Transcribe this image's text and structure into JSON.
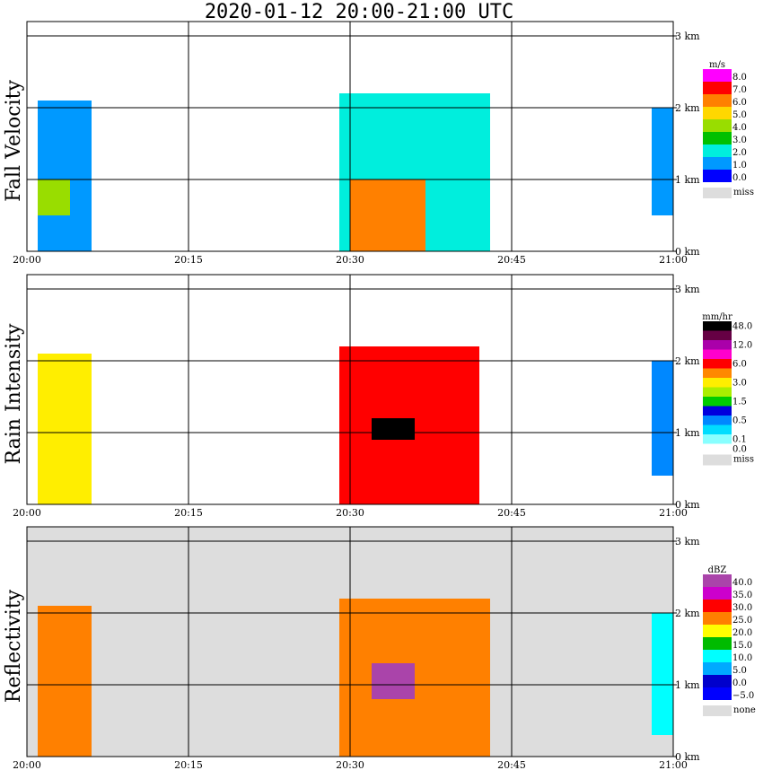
{
  "title": "2020-01-12   20:00-21:00 UTC",
  "x_ticks": [
    "20:00",
    "20:15",
    "20:30",
    "20:45",
    "21:00"
  ],
  "y_ticks": [
    "0 km",
    "1 km",
    "2 km",
    "3 km"
  ],
  "panels": [
    {
      "ylabel": "Fall Velocity",
      "unit": "m/s",
      "background": "#ffffff",
      "legend": [
        {
          "label": "8.0",
          "color": "#ff00ff"
        },
        {
          "label": "7.0",
          "color": "#ff0000"
        },
        {
          "label": "6.0",
          "color": "#ff8000"
        },
        {
          "label": "5.0",
          "color": "#ffd700"
        },
        {
          "label": "4.0",
          "color": "#99dd00"
        },
        {
          "label": "3.0",
          "color": "#00c000"
        },
        {
          "label": "2.0",
          "color": "#00eedd"
        },
        {
          "label": "1.0",
          "color": "#0099ff"
        },
        {
          "label": "0.0",
          "color": "#0000ff"
        }
      ],
      "missing_label": "miss"
    },
    {
      "ylabel": "Rain Intensity",
      "unit": "mm/hr",
      "background": "#ffffff",
      "legend": [
        {
          "label": "48.0",
          "color": "#000000"
        },
        {
          "label": "",
          "color": "#660044"
        },
        {
          "label": "12.0",
          "color": "#aa00aa"
        },
        {
          "label": "",
          "color": "#ff00cc"
        },
        {
          "label": "6.0",
          "color": "#ff0000"
        },
        {
          "label": "",
          "color": "#ff8800"
        },
        {
          "label": "3.0",
          "color": "#ffee00"
        },
        {
          "label": "",
          "color": "#aaee00"
        },
        {
          "label": "1.5",
          "color": "#00cc00"
        },
        {
          "label": "",
          "color": "#0000dd"
        },
        {
          "label": "0.5",
          "color": "#0088ff"
        },
        {
          "label": "",
          "color": "#00ddff"
        },
        {
          "label": "0.1",
          "color": "#88ffff"
        }
      ],
      "min_label": "0.0",
      "missing_label": "miss"
    },
    {
      "ylabel": "Reflectivity",
      "unit": "dBZ",
      "background": "#dddddd",
      "legend": [
        {
          "label": "40.0",
          "color": "#aa44aa"
        },
        {
          "label": "35.0",
          "color": "#cc00cc"
        },
        {
          "label": "30.0",
          "color": "#ff0000"
        },
        {
          "label": "25.0",
          "color": "#ff8000"
        },
        {
          "label": "20.0",
          "color": "#ffff00"
        },
        {
          "label": "15.0",
          "color": "#00bb00"
        },
        {
          "label": "10.0",
          "color": "#00ffff"
        },
        {
          "label": "5.0",
          "color": "#00aaff"
        },
        {
          "label": "0.0",
          "color": "#0000cc"
        },
        {
          "label": "−5.0",
          "color": "#0000ff"
        }
      ],
      "missing_label": "none"
    }
  ],
  "chart_data": [
    {
      "type": "heatmap",
      "title": "2020-01-12   20:00-21:00 UTC",
      "ylabel": "Fall Velocity",
      "unit": "m/s",
      "x_range": [
        "20:00",
        "21:00"
      ],
      "y_range_km": [
        0,
        3.2
      ],
      "cells": [
        {
          "t0": "20:01",
          "t1": "20:06",
          "h0": 0.0,
          "h1": 2.1,
          "v": 1.5
        },
        {
          "t0": "20:01",
          "t1": "20:04",
          "h0": 0.5,
          "h1": 1.0,
          "v": 4.0
        },
        {
          "t0": "20:29",
          "t1": "20:43",
          "h0": 0.0,
          "h1": 2.2,
          "v": 2.0
        },
        {
          "t0": "20:30",
          "t1": "20:37",
          "h0": 0.0,
          "h1": 1.0,
          "v": 6.0
        },
        {
          "t0": "20:58",
          "t1": "21:00",
          "h0": 0.5,
          "h1": 2.0,
          "v": 1.0
        }
      ]
    },
    {
      "type": "heatmap",
      "title": "2020-01-12   20:00-21:00 UTC",
      "ylabel": "Rain Intensity",
      "unit": "mm/hr",
      "x_range": [
        "20:00",
        "21:00"
      ],
      "y_range_km": [
        0,
        3.2
      ],
      "cells": [
        {
          "t0": "20:01",
          "t1": "20:06",
          "h0": 0.0,
          "h1": 2.1,
          "v": 3.0
        },
        {
          "t0": "20:29",
          "t1": "20:42",
          "h0": 0.0,
          "h1": 2.2,
          "v": 6.0
        },
        {
          "t0": "20:32",
          "t1": "20:36",
          "h0": 0.9,
          "h1": 1.2,
          "v": 48.0
        },
        {
          "t0": "20:58",
          "t1": "21:00",
          "h0": 0.4,
          "h1": 2.0,
          "v": 0.5
        }
      ]
    },
    {
      "type": "heatmap",
      "title": "2020-01-12   20:00-21:00 UTC",
      "ylabel": "Reflectivity",
      "unit": "dBZ",
      "x_range": [
        "20:00",
        "21:00"
      ],
      "y_range_km": [
        0,
        3.2
      ],
      "cells": [
        {
          "t0": "20:01",
          "t1": "20:06",
          "h0": 0.0,
          "h1": 2.1,
          "v": 25.0
        },
        {
          "t0": "20:29",
          "t1": "20:43",
          "h0": 0.0,
          "h1": 2.2,
          "v": 25.0
        },
        {
          "t0": "20:32",
          "t1": "20:36",
          "h0": 0.8,
          "h1": 1.3,
          "v": 40.0
        },
        {
          "t0": "20:58",
          "t1": "21:00",
          "h0": 0.3,
          "h1": 2.0,
          "v": 10.0
        }
      ]
    }
  ]
}
